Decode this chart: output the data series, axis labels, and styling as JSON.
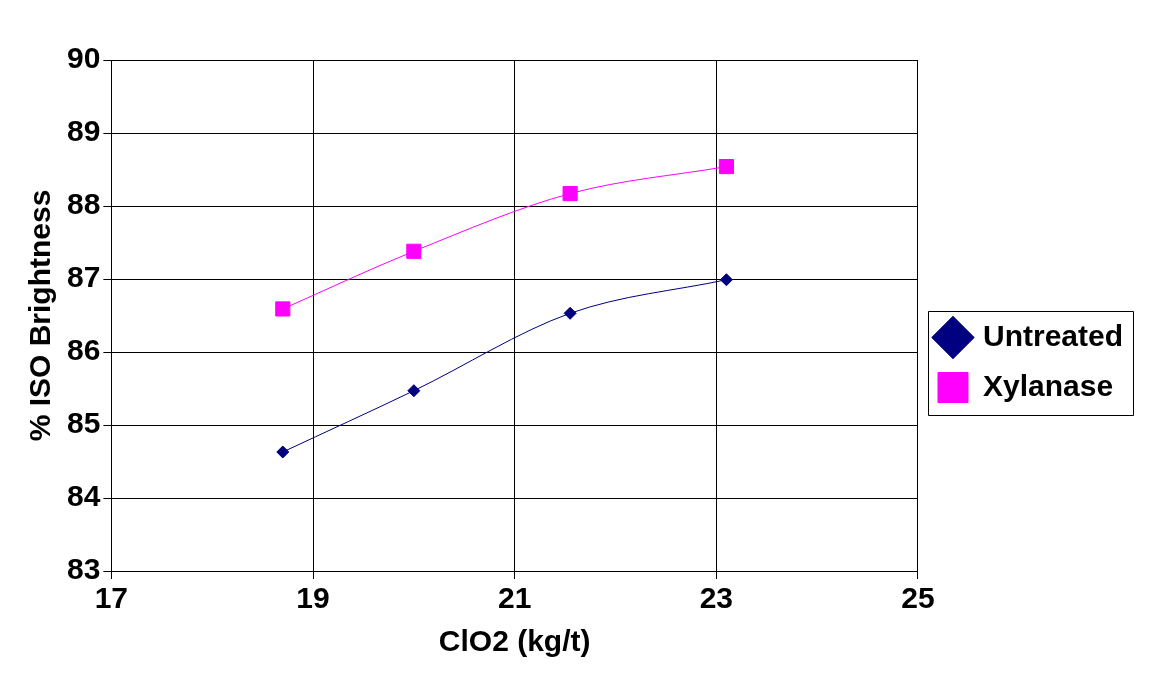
{
  "chart_data": {
    "type": "line",
    "xlabel": "ClO2 (kg/t)",
    "ylabel": "% ISO Brightness",
    "xlim": [
      17,
      25
    ],
    "xticks": [
      17,
      19,
      21,
      23,
      25
    ],
    "ylim": [
      83,
      90
    ],
    "yticks": [
      83,
      84,
      85,
      86,
      87,
      88,
      89,
      90
    ],
    "grid": true,
    "legend": "right",
    "series": [
      {
        "name": "Untreated",
        "color": "#000080",
        "marker": "diamond",
        "x": [
          18.7,
          20.0,
          21.55,
          23.1
        ],
        "values": [
          84.63,
          85.47,
          86.53,
          86.99
        ]
      },
      {
        "name": "Xylanase",
        "color": "#ff00ff",
        "marker": "square",
        "x": [
          18.7,
          20.0,
          21.55,
          23.1
        ],
        "values": [
          86.59,
          87.38,
          88.17,
          88.54
        ]
      }
    ]
  }
}
